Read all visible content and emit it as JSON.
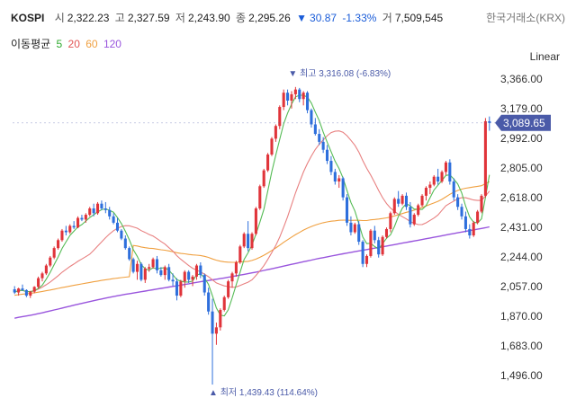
{
  "header": {
    "symbol": "KOSPI",
    "open_label": "시",
    "open": "2,322.23",
    "high_label": "고",
    "high": "2,327.59",
    "low_label": "저",
    "low": "2,243.90",
    "close_label": "종",
    "close": "2,295.26",
    "change": "30.87",
    "change_pct": "-1.33%",
    "volume_label": "거",
    "volume": "7,509,545",
    "exchange": "한국거래소(KRX)"
  },
  "ma_legend": {
    "label": "이동평균",
    "items": [
      {
        "period": "5",
        "color": "#2eaa2e"
      },
      {
        "period": "20",
        "color": "#e25555"
      },
      {
        "period": "60",
        "color": "#f0a040"
      },
      {
        "period": "120",
        "color": "#9955dd"
      }
    ]
  },
  "chart_data": {
    "type": "candlestick",
    "scale": "Linear",
    "ylim": [
      1420,
      3400
    ],
    "y_ticks": [
      1496,
      1683,
      1870,
      2057,
      2244,
      2431,
      2618,
      2805,
      2992,
      3179,
      3366
    ],
    "y_tick_labels": [
      "1,496.00",
      "1,683.00",
      "1,870.00",
      "2,057.00",
      "2,244.00",
      "2,431.00",
      "2,618.00",
      "2,805.00",
      "2,992.00",
      "3,179.00",
      "3,366.00"
    ],
    "current_price": "3,089.65",
    "current_value": 3089.65,
    "annotations": {
      "high": {
        "label": "최고",
        "value": 3316.08,
        "text": "3,316.08 (-6.83%)",
        "index": 71
      },
      "low": {
        "label": "최저",
        "value": 1439.43,
        "text": "1,439.43 (114.64%)",
        "index": 50
      }
    },
    "colors": {
      "up": "#e0343a",
      "down": "#2e6fdc",
      "current_badge": "#4a5aa8"
    },
    "candles": [
      [
        2040,
        2060,
        2010,
        2020
      ],
      [
        2020,
        2050,
        2000,
        2045
      ],
      [
        2045,
        2070,
        2030,
        2035
      ],
      [
        2035,
        2040,
        1990,
        2000
      ],
      [
        2000,
        2030,
        1985,
        2025
      ],
      [
        2025,
        2060,
        2015,
        2055
      ],
      [
        2055,
        2120,
        2045,
        2110
      ],
      [
        2110,
        2150,
        2090,
        2140
      ],
      [
        2140,
        2200,
        2130,
        2190
      ],
      [
        2190,
        2250,
        2180,
        2240
      ],
      [
        2240,
        2310,
        2230,
        2300
      ],
      [
        2300,
        2360,
        2290,
        2350
      ],
      [
        2350,
        2420,
        2340,
        2410
      ],
      [
        2410,
        2440,
        2380,
        2400
      ],
      [
        2400,
        2450,
        2390,
        2440
      ],
      [
        2440,
        2470,
        2420,
        2430
      ],
      [
        2430,
        2500,
        2425,
        2490
      ],
      [
        2490,
        2510,
        2470,
        2480
      ],
      [
        2480,
        2520,
        2460,
        2510
      ],
      [
        2510,
        2560,
        2500,
        2550
      ],
      [
        2550,
        2580,
        2500,
        2520
      ],
      [
        2520,
        2590,
        2510,
        2580
      ],
      [
        2580,
        2600,
        2540,
        2550
      ],
      [
        2550,
        2590,
        2520,
        2540
      ],
      [
        2540,
        2560,
        2480,
        2500
      ],
      [
        2500,
        2520,
        2450,
        2460
      ],
      [
        2460,
        2490,
        2400,
        2410
      ],
      [
        2410,
        2420,
        2350,
        2360
      ],
      [
        2360,
        2380,
        2290,
        2300
      ],
      [
        2300,
        2310,
        2220,
        2230
      ],
      [
        2230,
        2240,
        2140,
        2150
      ],
      [
        2150,
        2220,
        2100,
        2200
      ],
      [
        2200,
        2210,
        2090,
        2100
      ],
      [
        2100,
        2180,
        2080,
        2170
      ],
      [
        2170,
        2200,
        2150,
        2180
      ],
      [
        2180,
        2240,
        2170,
        2230
      ],
      [
        2230,
        2250,
        2140,
        2160
      ],
      [
        2160,
        2180,
        2120,
        2130
      ],
      [
        2130,
        2190,
        2100,
        2180
      ],
      [
        2180,
        2200,
        2090,
        2100
      ],
      [
        2100,
        2140,
        2060,
        2090
      ],
      [
        2090,
        2110,
        1970,
        2000
      ],
      [
        2000,
        2100,
        1990,
        2090
      ],
      [
        2090,
        2160,
        2050,
        2150
      ],
      [
        2150,
        2160,
        2080,
        2100
      ],
      [
        2100,
        2130,
        2060,
        2120
      ],
      [
        2120,
        2200,
        2100,
        2190
      ],
      [
        2190,
        2210,
        2110,
        2130
      ],
      [
        2130,
        2140,
        2000,
        2020
      ],
      [
        2020,
        2050,
        1880,
        1900
      ],
      [
        1900,
        1980,
        1439,
        1760
      ],
      [
        1760,
        1830,
        1690,
        1800
      ],
      [
        1800,
        1920,
        1780,
        1910
      ],
      [
        1910,
        2000,
        1900,
        1990
      ],
      [
        1990,
        2100,
        1980,
        2090
      ],
      [
        2090,
        2150,
        2050,
        2140
      ],
      [
        2140,
        2220,
        2120,
        2210
      ],
      [
        2210,
        2320,
        2200,
        2310
      ],
      [
        2310,
        2400,
        2300,
        2390
      ],
      [
        2390,
        2470,
        2280,
        2300
      ],
      [
        2300,
        2400,
        2290,
        2390
      ],
      [
        2390,
        2560,
        2380,
        2550
      ],
      [
        2550,
        2700,
        2540,
        2690
      ],
      [
        2690,
        2800,
        2680,
        2790
      ],
      [
        2790,
        2900,
        2780,
        2890
      ],
      [
        2890,
        3000,
        2880,
        2990
      ],
      [
        2990,
        3080,
        2970,
        3070
      ],
      [
        3070,
        3200,
        3050,
        3190
      ],
      [
        3190,
        3300,
        3170,
        3280
      ],
      [
        3280,
        3300,
        3200,
        3230
      ],
      [
        3230,
        3290,
        3180,
        3270
      ],
      [
        3270,
        3316,
        3240,
        3300
      ],
      [
        3300,
        3310,
        3220,
        3240
      ],
      [
        3240,
        3290,
        3200,
        3280
      ],
      [
        3280,
        3290,
        3150,
        3170
      ],
      [
        3170,
        3180,
        3060,
        3080
      ],
      [
        3080,
        3120,
        3010,
        3020
      ],
      [
        3020,
        3050,
        2950,
        2970
      ],
      [
        2970,
        3000,
        2900,
        2920
      ],
      [
        2920,
        2950,
        2830,
        2850
      ],
      [
        2850,
        2880,
        2760,
        2780
      ],
      [
        2780,
        2800,
        2700,
        2720
      ],
      [
        2720,
        2760,
        2680,
        2740
      ],
      [
        2740,
        2750,
        2600,
        2620
      ],
      [
        2620,
        2640,
        2440,
        2460
      ],
      [
        2460,
        2500,
        2380,
        2400
      ],
      [
        2400,
        2460,
        2390,
        2450
      ],
      [
        2450,
        2470,
        2320,
        2340
      ],
      [
        2340,
        2350,
        2180,
        2200
      ],
      [
        2200,
        2260,
        2180,
        2250
      ],
      [
        2250,
        2420,
        2240,
        2410
      ],
      [
        2410,
        2440,
        2330,
        2350
      ],
      [
        2350,
        2370,
        2240,
        2260
      ],
      [
        2260,
        2380,
        2250,
        2370
      ],
      [
        2370,
        2430,
        2360,
        2420
      ],
      [
        2420,
        2530,
        2400,
        2520
      ],
      [
        2520,
        2620,
        2510,
        2610
      ],
      [
        2610,
        2660,
        2560,
        2580
      ],
      [
        2580,
        2640,
        2570,
        2630
      ],
      [
        2630,
        2650,
        2540,
        2560
      ],
      [
        2560,
        2590,
        2430,
        2450
      ],
      [
        2450,
        2520,
        2440,
        2510
      ],
      [
        2510,
        2580,
        2500,
        2570
      ],
      [
        2570,
        2640,
        2560,
        2630
      ],
      [
        2630,
        2690,
        2600,
        2680
      ],
      [
        2680,
        2720,
        2640,
        2700
      ],
      [
        2700,
        2760,
        2690,
        2750
      ],
      [
        2750,
        2800,
        2700,
        2720
      ],
      [
        2720,
        2790,
        2710,
        2780
      ],
      [
        2780,
        2850,
        2760,
        2840
      ],
      [
        2840,
        2860,
        2700,
        2720
      ],
      [
        2720,
        2740,
        2600,
        2620
      ],
      [
        2620,
        2640,
        2540,
        2560
      ],
      [
        2560,
        2580,
        2480,
        2500
      ],
      [
        2500,
        2530,
        2400,
        2420
      ],
      [
        2420,
        2450,
        2360,
        2380
      ],
      [
        2380,
        2470,
        2370,
        2460
      ],
      [
        2460,
        2540,
        2450,
        2530
      ],
      [
        2530,
        2640,
        2520,
        2630
      ],
      [
        2630,
        3120,
        2620,
        3100
      ],
      [
        3100,
        3130,
        3040,
        3089.65
      ]
    ]
  }
}
